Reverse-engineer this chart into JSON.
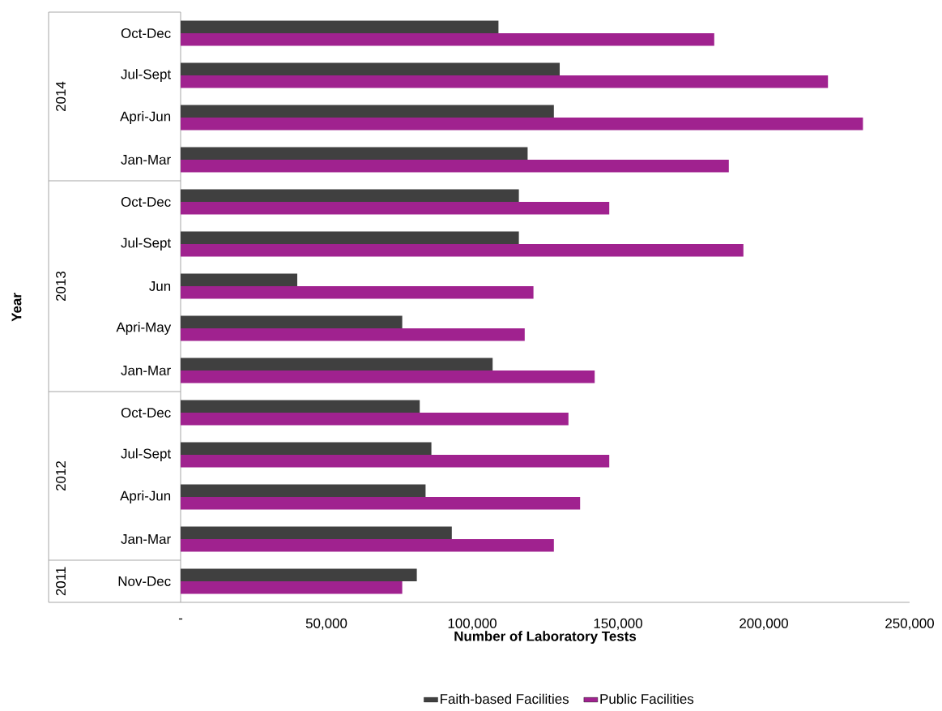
{
  "chart_data": {
    "type": "bar",
    "orientation": "horizontal",
    "xlabel": "Number of Laboratory  Tests",
    "categories": [
      "Oct-Dec",
      "Jul-Sept",
      "Apri-Jun",
      "Jan-Mar",
      "Oct-Dec",
      "Jul-Sept",
      "Jun",
      "Apri-May",
      "Jan-Mar",
      "Oct-Dec",
      "Jul-Sept",
      "Apri-Jun",
      "Jan-Mar",
      "Nov-Dec"
    ],
    "series": [
      {
        "name": "Faith-based Facilities",
        "color": "#404040",
        "values": [
          109000,
          130000,
          128000,
          119000,
          116000,
          116000,
          40000,
          76000,
          107000,
          82000,
          86000,
          84000,
          93000,
          81000
        ]
      },
      {
        "name": "Public Facilities",
        "color": "#a0228f",
        "values": [
          183000,
          222000,
          234000,
          188000,
          147000,
          193000,
          121000,
          118000,
          142000,
          133000,
          147000,
          137000,
          128000,
          76000
        ]
      }
    ],
    "xlim": [
      0,
      250000
    ],
    "xticks": [
      {
        "value": 0,
        "label": "-"
      },
      {
        "value": 50000,
        "label": "50,000"
      },
      {
        "value": 100000,
        "label": "100,000"
      },
      {
        "value": 150000,
        "label": "150,000"
      },
      {
        "value": 200000,
        "label": "200,000"
      },
      {
        "value": 250000,
        "label": "250,000"
      }
    ],
    "annotations": [
      "2014",
      "2013",
      "2012",
      "2011",
      "Year"
    ],
    "grid": false,
    "legend": "bottom"
  }
}
